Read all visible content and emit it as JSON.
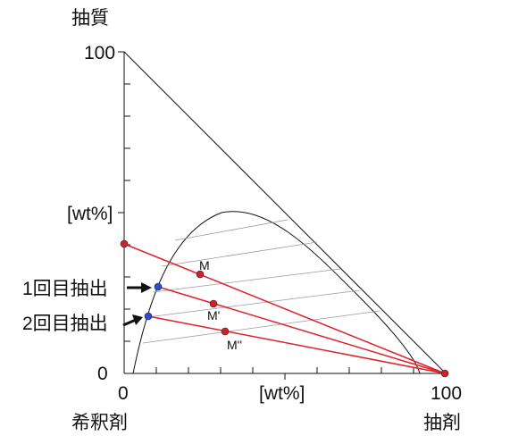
{
  "title_top": "抽質",
  "y_axis": {
    "max_label": "100",
    "zero_label": "0",
    "unit_label": "[wt%]"
  },
  "x_axis": {
    "zero_label": "0",
    "max_label": "100",
    "unit_label": "[wt%]"
  },
  "corner_bottom_left": "希釈剤",
  "corner_bottom_right": "抽剤",
  "annotations": {
    "first_extraction": "1回目抽出",
    "second_extraction": "2回目抽出"
  },
  "points": {
    "M": "M",
    "M1": "M'",
    "M2": "M''"
  },
  "colors": {
    "line": "#e0202a",
    "point_red": "#d0202a",
    "point_blue": "#2a4bd8",
    "frame": "#111111",
    "tie_line": "#9a9a9a"
  }
}
